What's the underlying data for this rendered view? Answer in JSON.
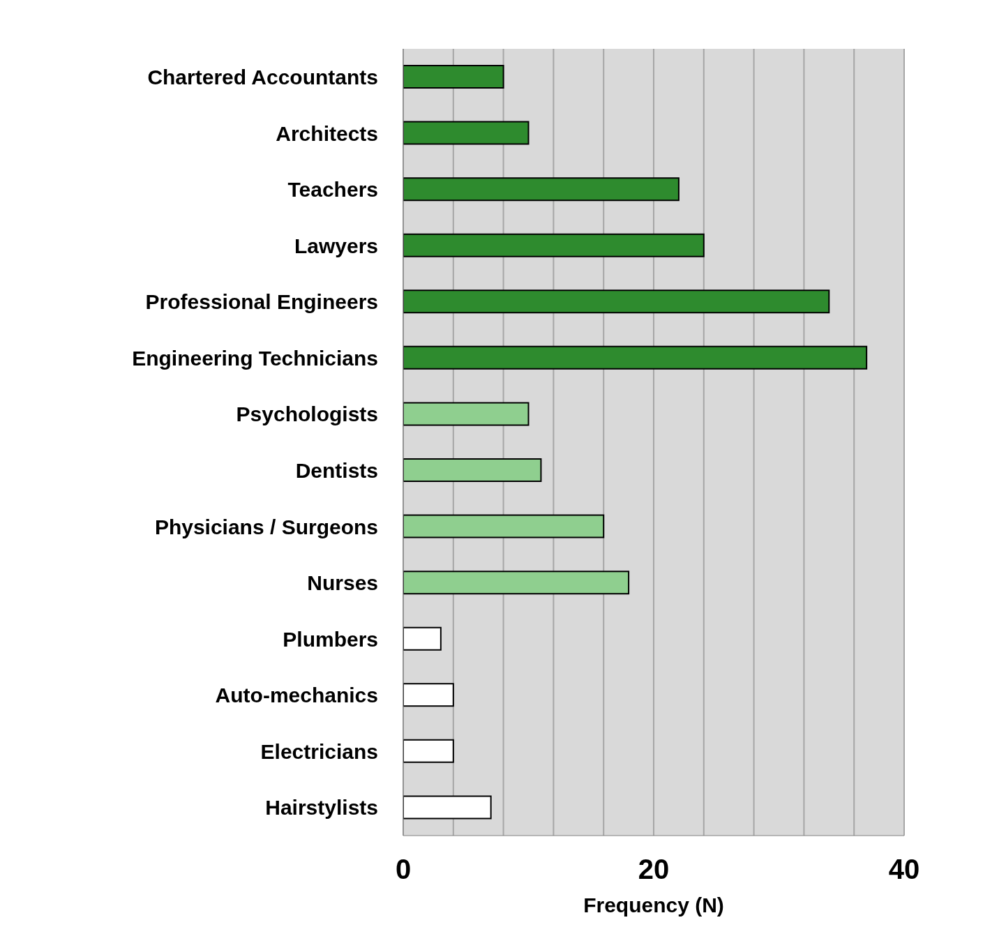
{
  "chart_data": {
    "type": "bar",
    "orientation": "horizontal",
    "xlabel": "Frequency (N)",
    "categories": [
      "Chartered Accountants",
      "Architects",
      "Teachers",
      "Lawyers",
      "Professional Engineers",
      "Engineering Technicians",
      "Psychologists",
      "Dentists",
      "Physicians / Surgeons",
      "Nurses",
      "Plumbers",
      "Auto-mechanics",
      "Electricians",
      "Hairstylists"
    ],
    "values": [
      8,
      10,
      22,
      24,
      34,
      37,
      10,
      11,
      16,
      18,
      3,
      4,
      4,
      7
    ],
    "colors": [
      "#2e8b2e",
      "#2e8b2e",
      "#2e8b2e",
      "#2e8b2e",
      "#2e8b2e",
      "#2e8b2e",
      "#8fcf8f",
      "#8fcf8f",
      "#8fcf8f",
      "#8fcf8f",
      "#ffffff",
      "#ffffff",
      "#ffffff",
      "#ffffff"
    ],
    "xlim": [
      0,
      40
    ],
    "xticks": [
      0,
      {
        "value": 4,
        "label": null
      },
      {
        "value": 8,
        "label": null
      },
      {
        "value": 12,
        "label": null
      },
      {
        "value": 16,
        "label": null
      },
      20,
      {
        "value": 24,
        "label": null
      },
      {
        "value": 28,
        "label": null
      },
      {
        "value": 32,
        "label": null
      },
      {
        "value": 36,
        "label": null
      },
      40
    ],
    "grid": "x"
  }
}
